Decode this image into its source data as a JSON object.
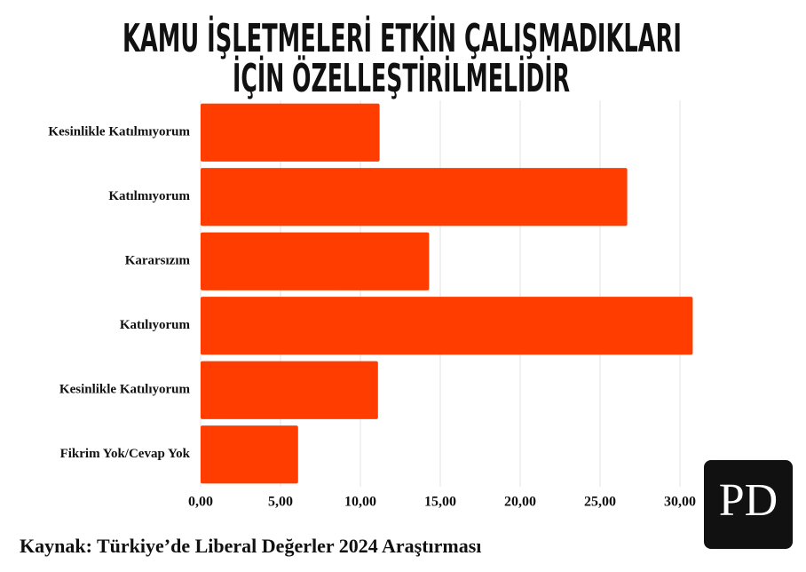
{
  "chart_data": {
    "type": "barh",
    "title": [
      "KAMU İŞLETMELERİ ETKİN ÇALIŞMADIKLARI",
      "İÇİN ÖZELLEŞTİRİLMELİDİR"
    ],
    "categories": [
      "Kesinlikle Katılmıyorum",
      "Katılmıyorum",
      "Kararsızım",
      "Katılıyorum",
      "Kesinlikle Katılıyorum",
      "Fikrim Yok/Cevap Yok"
    ],
    "values": [
      11.2,
      26.7,
      14.3,
      30.8,
      11.1,
      6.1
    ],
    "color": "#ff3d00",
    "xlim": [
      0,
      35
    ],
    "xticks": [
      {
        "value": 0,
        "label": "0,00"
      },
      {
        "value": 5,
        "label": "5,00"
      },
      {
        "value": 10,
        "label": "10,00"
      },
      {
        "value": 15,
        "label": "15,00"
      },
      {
        "value": 20,
        "label": "20,00"
      },
      {
        "value": 25,
        "label": "25,00"
      },
      {
        "value": 30,
        "label": "30,00"
      }
    ],
    "grid": true,
    "source": "Kaynak: Türkiye’de Liberal Değerler 2024 Araştırması",
    "logo": "PD"
  }
}
